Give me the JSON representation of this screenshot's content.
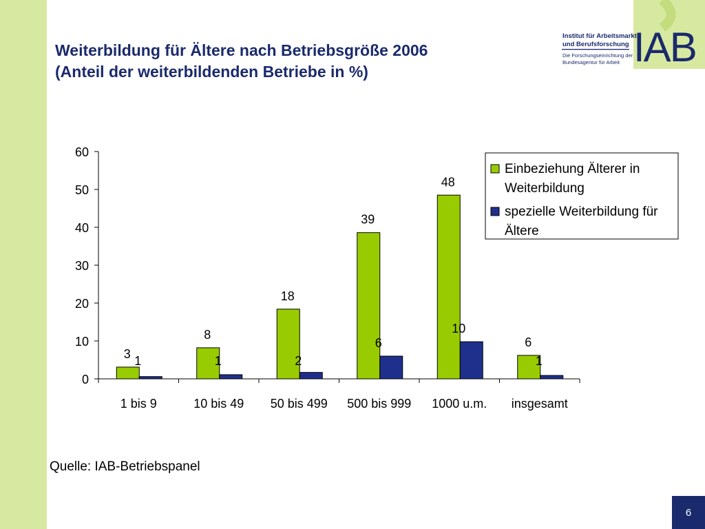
{
  "slide": {
    "title_line1": "Weiterbildung für Ältere nach Betriebsgröße 2006",
    "title_line2": "(Anteil der weiterbildenden Betriebe in %)",
    "source": "Quelle: IAB-Betriebspanel",
    "page_number": "6"
  },
  "logo": {
    "name_line1": "Institut für Arbeitsmarkt-",
    "name_line2": "und Berufsforschung",
    "sub_line1": "Die Forschungseinrichtung der",
    "sub_line2": "Bundesagentur für Arbeit",
    "mark": "IAB"
  },
  "colors": {
    "band": "#d7e9a0",
    "title": "#1a2a6c",
    "series1": "#99cc00",
    "series2": "#1f2f8c"
  },
  "chart_data": {
    "type": "bar",
    "title": "Weiterbildung für Ältere nach Betriebsgröße 2006",
    "xlabel": "",
    "ylabel": "",
    "ylim": [
      0,
      60
    ],
    "yticks": [
      0,
      10,
      20,
      30,
      40,
      50,
      60
    ],
    "grid": false,
    "legend_position": "top-right",
    "categories": [
      "1 bis 9",
      "10 bis 49",
      "50 bis 499",
      "500 bis 999",
      "1000 u.m.",
      "insgesamt"
    ],
    "series": [
      {
        "name": "Einbeziehung Älterer in Weiterbildung",
        "legend_lines": [
          "Einbeziehung Älterer in",
          "Weiterbildung"
        ],
        "color": "#99cc00",
        "values": [
          3.1,
          8.2,
          18.4,
          38.6,
          48.5,
          6.2
        ],
        "labels": [
          "3",
          "8",
          "18",
          "39",
          "48",
          "6"
        ]
      },
      {
        "name": "spezielle Weiterbildung für Ältere",
        "legend_lines": [
          "spezielle Weiterbildung für",
          "Ältere"
        ],
        "color": "#1f2f8c",
        "values": [
          0.6,
          1.1,
          1.7,
          6.0,
          9.8,
          0.9
        ],
        "labels": [
          "1",
          "1",
          "2",
          "6",
          "10",
          "1"
        ]
      }
    ]
  }
}
